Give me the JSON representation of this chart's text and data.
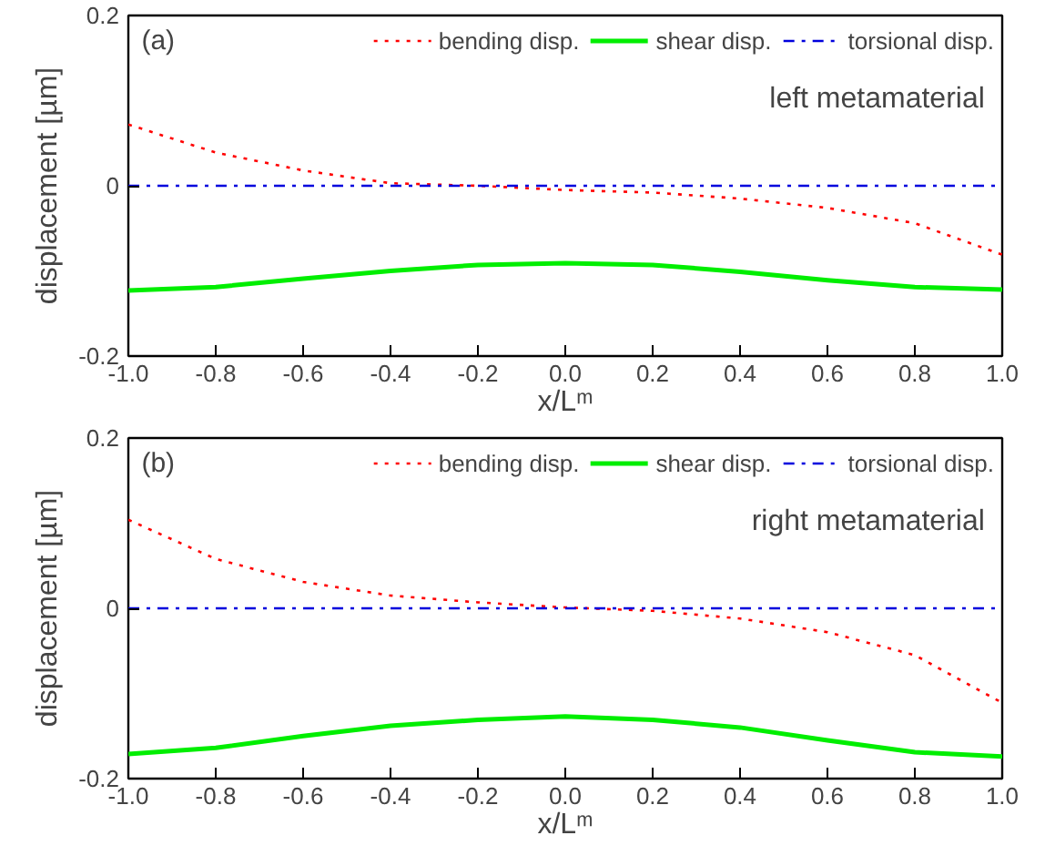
{
  "chart_data": [
    {
      "type": "line",
      "xlabel": "x/Lᵐ",
      "ylabel": "displacement [µm]",
      "annotations": [
        "(a)",
        "left metamaterial"
      ],
      "x": [
        -1.0,
        -0.8,
        -0.6,
        -0.4,
        -0.2,
        0.0,
        0.2,
        0.4,
        0.6,
        0.8,
        1.0
      ],
      "series": [
        {
          "name": "bending disp.",
          "color": "#ff0000",
          "line_style": "dotted",
          "values": [
            0.072,
            0.039,
            0.018,
            0.003,
            0.0,
            -0.005,
            -0.008,
            -0.015,
            -0.026,
            -0.044,
            -0.081
          ]
        },
        {
          "name": "shear disp.",
          "color": "#00ee00",
          "line_style": "solid",
          "values": [
            -0.123,
            -0.119,
            -0.109,
            -0.1,
            -0.093,
            -0.091,
            -0.093,
            -0.101,
            -0.111,
            -0.119,
            -0.122
          ]
        },
        {
          "name": "torsional disp.",
          "color": "#0000dd",
          "line_style": "dashdot",
          "values": [
            0,
            0,
            0,
            0,
            0,
            0,
            0,
            0,
            0,
            0,
            0
          ]
        }
      ],
      "xlim": [
        -1.0,
        1.0
      ],
      "ylim": [
        -0.2,
        0.2
      ],
      "xticks": [
        {
          "value": -1.0,
          "label": "-1.0"
        },
        -0.8,
        -0.6,
        -0.4,
        -0.2,
        {
          "value": 0.0,
          "label": "0.0"
        },
        0.2,
        0.4,
        0.6,
        0.8,
        {
          "value": 1.0,
          "label": "1.0"
        }
      ],
      "yticks": [
        -0.2,
        0,
        0.2
      ],
      "grid": false,
      "legend": "top"
    },
    {
      "type": "line",
      "xlabel": "x/Lᵐ",
      "ylabel": "displacement [µm]",
      "annotations": [
        "(b)",
        "right metamaterial"
      ],
      "x": [
        -1.0,
        -0.8,
        -0.6,
        -0.4,
        -0.2,
        0.0,
        0.2,
        0.4,
        0.6,
        0.8,
        1.0
      ],
      "series": [
        {
          "name": "bending disp.",
          "color": "#ff0000",
          "line_style": "dotted",
          "values": [
            0.104,
            0.058,
            0.031,
            0.015,
            0.007,
            0.001,
            -0.003,
            -0.012,
            -0.028,
            -0.055,
            -0.111
          ]
        },
        {
          "name": "shear disp.",
          "color": "#00ee00",
          "line_style": "solid",
          "values": [
            -0.171,
            -0.164,
            -0.15,
            -0.138,
            -0.131,
            -0.127,
            -0.131,
            -0.14,
            -0.155,
            -0.169,
            -0.174
          ]
        },
        {
          "name": "torsional disp.",
          "color": "#0000dd",
          "line_style": "dashdot",
          "values": [
            0,
            0,
            0,
            0,
            0,
            0,
            0,
            0,
            0,
            0,
            0
          ]
        }
      ],
      "xlim": [
        -1.0,
        1.0
      ],
      "ylim": [
        -0.2,
        0.2
      ],
      "xticks": [
        {
          "value": -1.0,
          "label": "-1.0"
        },
        -0.8,
        -0.6,
        -0.4,
        -0.2,
        {
          "value": 0.0,
          "label": "0.0"
        },
        0.2,
        0.4,
        0.6,
        0.8,
        {
          "value": 1.0,
          "label": "1.0"
        }
      ],
      "yticks": [
        -0.2,
        0,
        0.2
      ],
      "grid": false,
      "legend": "top"
    }
  ]
}
